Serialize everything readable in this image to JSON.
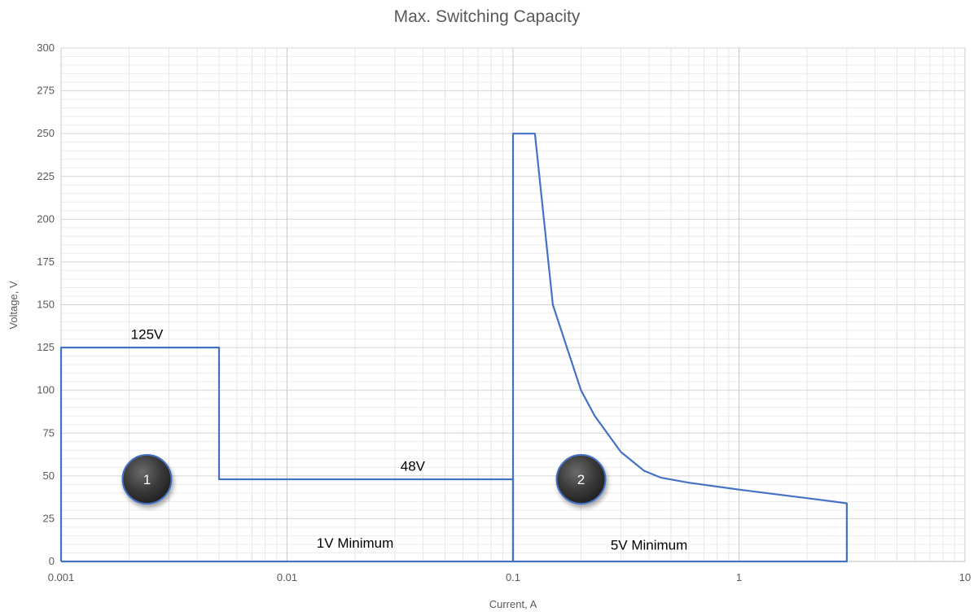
{
  "chart_data": {
    "type": "line",
    "title": "Max. Switching Capacity",
    "xlabel": "Current, A",
    "ylabel": "Voltage, V",
    "xscale": "log",
    "xlim": [
      0.001,
      10
    ],
    "ylim": [
      0,
      300
    ],
    "x_ticks": [
      {
        "value": 0.001,
        "label": "0.001"
      },
      {
        "value": 0.01,
        "label": "0.01"
      },
      {
        "value": 0.1,
        "label": "0.1"
      },
      {
        "value": 1,
        "label": "1"
      },
      {
        "value": 10,
        "label": "10"
      }
    ],
    "y_ticks": [
      {
        "value": 0,
        "label": "0"
      },
      {
        "value": 25,
        "label": "25"
      },
      {
        "value": 50,
        "label": "50"
      },
      {
        "value": 75,
        "label": "75"
      },
      {
        "value": 100,
        "label": "100"
      },
      {
        "value": 125,
        "label": "125"
      },
      {
        "value": 150,
        "label": "150"
      },
      {
        "value": 175,
        "label": "175"
      },
      {
        "value": 200,
        "label": "200"
      },
      {
        "value": 225,
        "label": "225"
      },
      {
        "value": 250,
        "label": "250"
      },
      {
        "value": 275,
        "label": "275"
      },
      {
        "value": 300,
        "label": "300"
      }
    ],
    "grid": true,
    "line_color": "#4472c4",
    "series": [
      {
        "points": [
          {
            "x": 0.001,
            "y": 0
          },
          {
            "x": 0.001,
            "y": 125
          },
          {
            "x": 0.005,
            "y": 125
          },
          {
            "x": 0.005,
            "y": 48
          },
          {
            "x": 0.1,
            "y": 48
          },
          {
            "x": 0.1,
            "y": 0
          },
          {
            "x": 0.001,
            "y": 0
          }
        ]
      },
      {
        "points": [
          {
            "x": 0.1,
            "y": 0
          },
          {
            "x": 0.1,
            "y": 250
          },
          {
            "x": 0.125,
            "y": 250
          },
          {
            "x": 0.15,
            "y": 150
          },
          {
            "x": 0.2,
            "y": 100
          },
          {
            "x": 0.23,
            "y": 85
          },
          {
            "x": 0.3,
            "y": 64
          },
          {
            "x": 0.38,
            "y": 53
          },
          {
            "x": 0.45,
            "y": 49
          },
          {
            "x": 0.6,
            "y": 46
          },
          {
            "x": 1,
            "y": 42
          },
          {
            "x": 2.3,
            "y": 36
          },
          {
            "x": 3,
            "y": 34
          },
          {
            "x": 3,
            "y": 0
          },
          {
            "x": 0.1,
            "y": 0
          }
        ]
      }
    ],
    "annotations": [
      {
        "text": "125V",
        "x": 0.0024,
        "y": 130
      },
      {
        "text": "48V",
        "x": 0.036,
        "y": 53
      },
      {
        "text": "1V Minimum",
        "x": 0.02,
        "y": 8
      },
      {
        "text": "5V Minimum",
        "x": 0.4,
        "y": 7
      }
    ],
    "markers": [
      {
        "text": "1",
        "x": 0.0024,
        "y": 48
      },
      {
        "text": "2",
        "x": 0.2,
        "y": 48
      }
    ]
  }
}
